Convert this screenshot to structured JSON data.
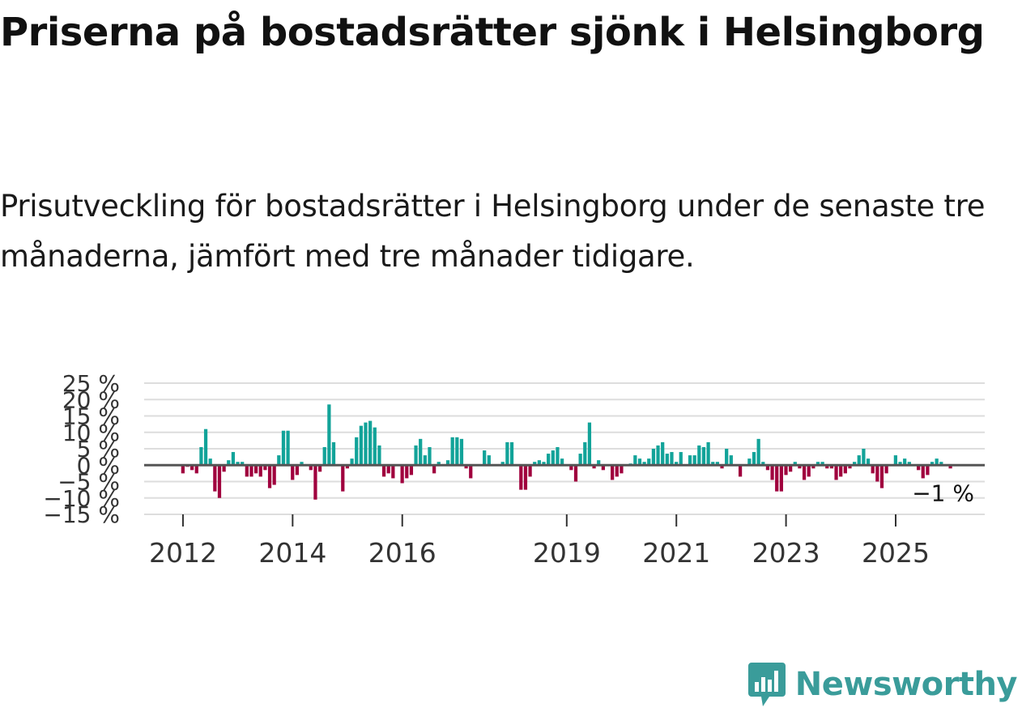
{
  "header": {
    "title": "Priserna på bostadsrätter sjönk i Helsingborg",
    "subtitle": "Prisutveckling för bostadsrätter i Helsingborg under de senaste tre månaderna, jämfört med tre månader tidigare."
  },
  "brand": {
    "name": "Newsworthy",
    "color": "#3a9c9a",
    "icon": "newsworthy-logo-icon"
  },
  "colors": {
    "positive": "#12a399",
    "negative": "#a0003e",
    "grid": "#dddddd",
    "zero": "#555555"
  },
  "chart_data": {
    "type": "bar",
    "ylim": [
      -15,
      25
    ],
    "yticks": [
      25,
      20,
      15,
      10,
      5,
      0,
      -5,
      -10,
      -15
    ],
    "ytick_labels": [
      "25 %",
      "20 %",
      "15 %",
      "10 %",
      "5 %",
      "0 %",
      "−5 %",
      "−10 %",
      "−15 %"
    ],
    "xticks": [
      {
        "index": 8,
        "label": "2012"
      },
      {
        "index": 32,
        "label": "2014"
      },
      {
        "index": 56,
        "label": "2016"
      },
      {
        "index": 92,
        "label": "2019"
      },
      {
        "index": 116,
        "label": "2021"
      },
      {
        "index": 140,
        "label": "2023"
      },
      {
        "index": 164,
        "label": "2025"
      }
    ],
    "last_label": "−1 %",
    "values": [
      0,
      0,
      0,
      0,
      0,
      0,
      0,
      0,
      -2.5,
      -0.5,
      -1.5,
      -2.5,
      5.5,
      11,
      2,
      -8,
      -10,
      -2,
      1.5,
      4,
      1,
      1,
      -3.5,
      -3.5,
      -2.5,
      -3.5,
      -1.5,
      -7,
      -6,
      3,
      10.5,
      10.5,
      -4.5,
      -3,
      1,
      0,
      -1.5,
      -10.5,
      -2,
      5.5,
      18.5,
      7,
      0,
      -8,
      -1,
      2,
      8.5,
      12,
      13,
      13.5,
      11.5,
      6,
      -3.5,
      -2.5,
      -4,
      0,
      -5.5,
      -4,
      -3,
      6,
      8,
      3,
      5.5,
      -2.5,
      1,
      0,
      1.5,
      8.5,
      8.5,
      8,
      -1,
      -4,
      0,
      0,
      4.5,
      3,
      0,
      0,
      1,
      7,
      7,
      0,
      -7.5,
      -7.5,
      -3.5,
      1,
      1.5,
      1,
      3.5,
      4.5,
      5.5,
      2,
      0,
      -1.5,
      -5,
      3.5,
      7,
      13,
      -1,
      1.5,
      -1.5,
      0,
      -4.5,
      -3.5,
      -2.5,
      0,
      0.5,
      3,
      2,
      1,
      2,
      5,
      6,
      7,
      3.5,
      4,
      1,
      4,
      0,
      3,
      3,
      6,
      5.5,
      7,
      1,
      1,
      -1,
      5,
      3,
      0,
      -3.5,
      0,
      2,
      4,
      8,
      1,
      -1.5,
      -4.5,
      -8,
      -8,
      -3,
      -2,
      1,
      -1,
      -4.5,
      -3.5,
      -1,
      1,
      1,
      -1,
      -1,
      -4.5,
      -3.5,
      -2.5,
      -1,
      1,
      3,
      5,
      2,
      -2.5,
      -5,
      -7,
      -2.5,
      0,
      3,
      1,
      2,
      1,
      0,
      -1.5,
      -4,
      -3,
      1,
      2,
      1,
      0,
      -1,
      0,
      0,
      0,
      0,
      0,
      0,
      0
    ]
  }
}
